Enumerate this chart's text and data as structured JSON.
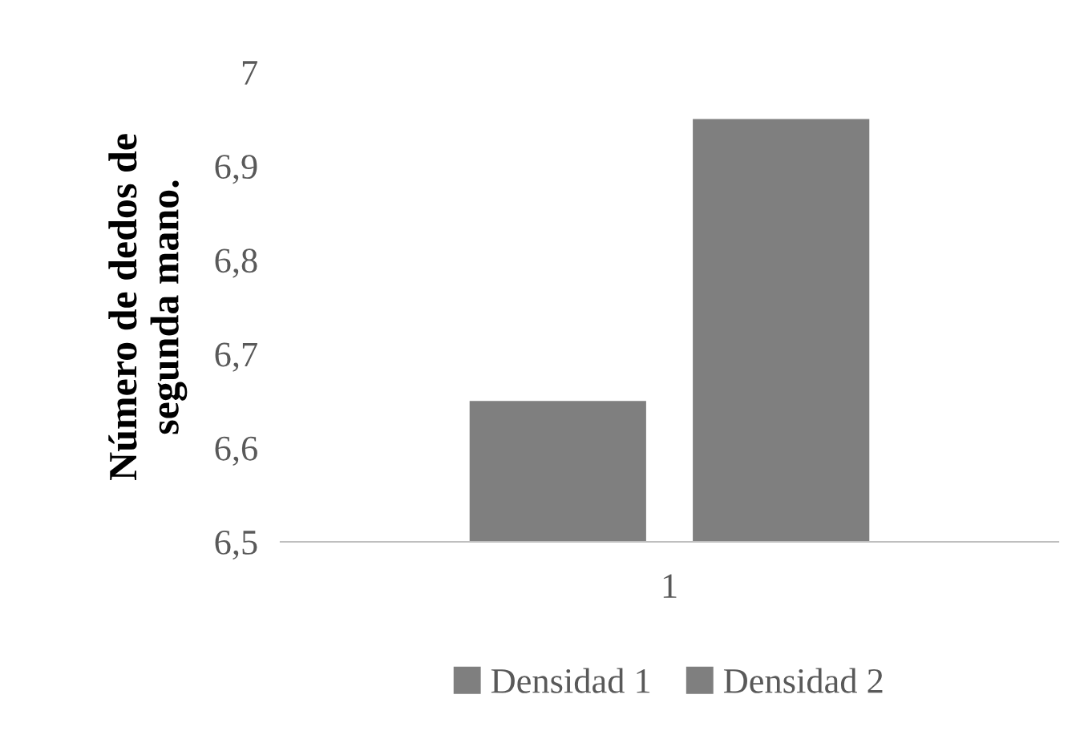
{
  "chart_data": {
    "type": "bar",
    "ylabel": "Número de dedos de\nsegunda mano.",
    "categories": [
      "1"
    ],
    "series": [
      {
        "name": "Densidad 1",
        "color": "#7f7f7f",
        "values": [
          6.65
        ]
      },
      {
        "name": "Densidad 2",
        "color": "#7f7f7f",
        "values": [
          6.95
        ]
      }
    ],
    "ylim": [
      6.5,
      7
    ],
    "yticks": [
      {
        "value": 6.5,
        "label": "6,5"
      },
      {
        "value": 6.6,
        "label": "6,6"
      },
      {
        "value": 6.7,
        "label": "6,7"
      },
      {
        "value": 6.8,
        "label": "6,8"
      },
      {
        "value": 6.9,
        "label": "6,9"
      },
      7
    ],
    "grid": false,
    "legend": "bottom"
  }
}
